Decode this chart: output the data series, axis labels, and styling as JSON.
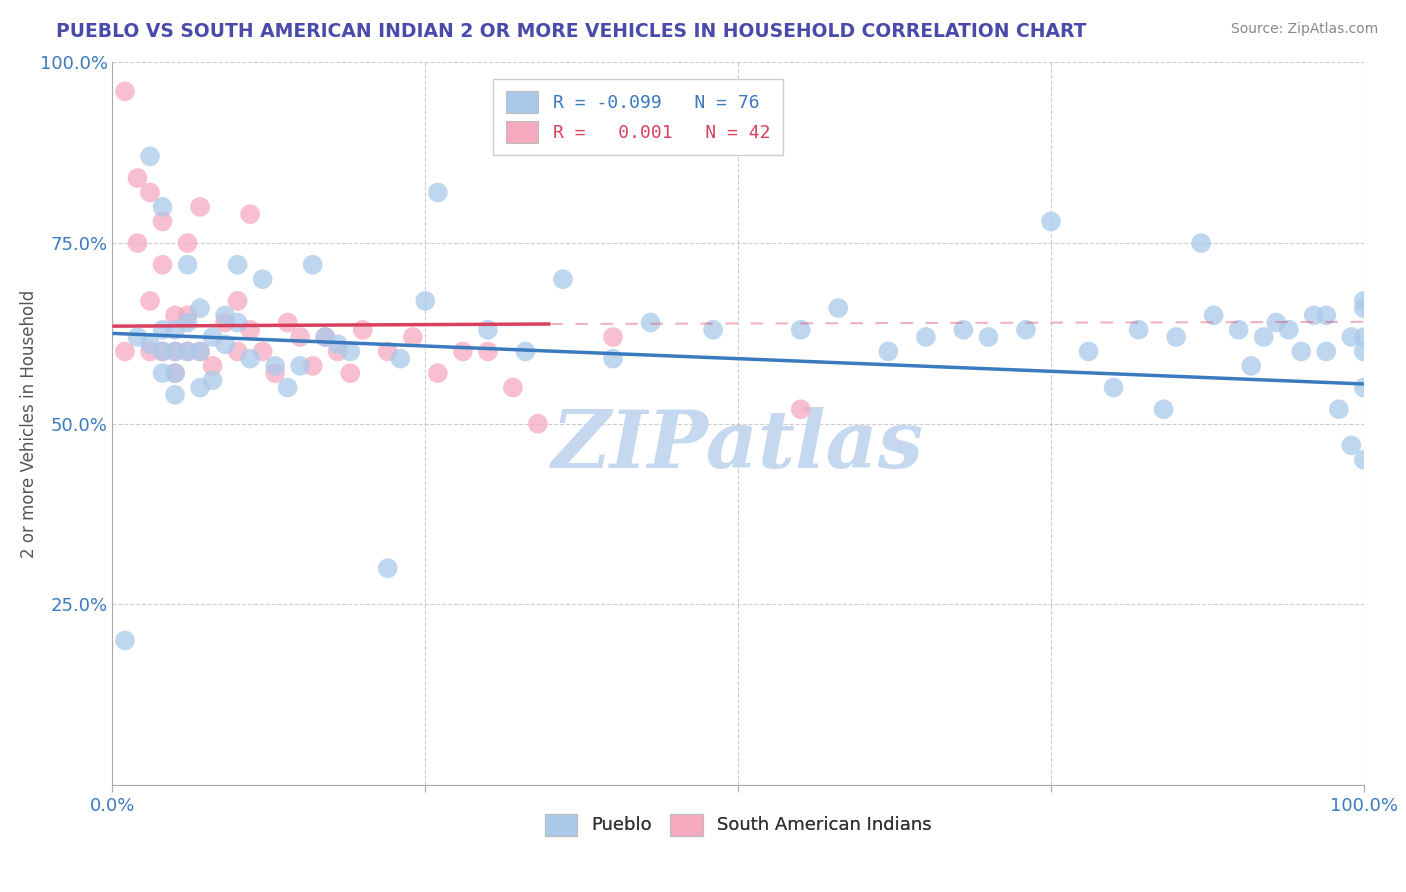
{
  "title": "PUEBLO VS SOUTH AMERICAN INDIAN 2 OR MORE VEHICLES IN HOUSEHOLD CORRELATION CHART",
  "source": "Source: ZipAtlas.com",
  "ylabel": "2 or more Vehicles in Household",
  "xlim": [
    0,
    1
  ],
  "ylim": [
    0,
    1
  ],
  "blue_color": "#aac9ea",
  "pink_color": "#f5aabf",
  "blue_line_color": "#3a7abf",
  "pink_line_color": "#d94060",
  "title_color": "#4a4aaa",
  "watermark": "ZIPatlas",
  "watermark_color": "#c5d8f0",
  "pueblo_x": [
    0.01,
    0.02,
    0.03,
    0.03,
    0.04,
    0.04,
    0.04,
    0.04,
    0.05,
    0.05,
    0.05,
    0.05,
    0.06,
    0.06,
    0.06,
    0.07,
    0.07,
    0.07,
    0.08,
    0.08,
    0.09,
    0.09,
    0.1,
    0.1,
    0.11,
    0.12,
    0.13,
    0.14,
    0.15,
    0.16,
    0.17,
    0.18,
    0.19,
    0.22,
    0.23,
    0.25,
    0.26,
    0.3,
    0.33,
    0.36,
    0.4,
    0.43,
    0.48,
    0.55,
    0.58,
    0.62,
    0.65,
    0.68,
    0.7,
    0.73,
    0.75,
    0.78,
    0.8,
    0.82,
    0.84,
    0.85,
    0.87,
    0.88,
    0.9,
    0.91,
    0.92,
    0.93,
    0.94,
    0.95,
    0.96,
    0.97,
    0.97,
    0.98,
    0.99,
    0.99,
    1.0,
    1.0,
    1.0,
    1.0,
    1.0,
    1.0
  ],
  "pueblo_y": [
    0.2,
    0.62,
    0.61,
    0.87,
    0.57,
    0.6,
    0.63,
    0.8,
    0.54,
    0.57,
    0.6,
    0.63,
    0.72,
    0.6,
    0.64,
    0.55,
    0.6,
    0.66,
    0.56,
    0.62,
    0.61,
    0.65,
    0.72,
    0.64,
    0.59,
    0.7,
    0.58,
    0.55,
    0.58,
    0.72,
    0.62,
    0.61,
    0.6,
    0.3,
    0.59,
    0.67,
    0.82,
    0.63,
    0.6,
    0.7,
    0.59,
    0.64,
    0.63,
    0.63,
    0.66,
    0.6,
    0.62,
    0.63,
    0.62,
    0.63,
    0.78,
    0.6,
    0.55,
    0.63,
    0.52,
    0.62,
    0.75,
    0.65,
    0.63,
    0.58,
    0.62,
    0.64,
    0.63,
    0.6,
    0.65,
    0.6,
    0.65,
    0.52,
    0.47,
    0.62,
    0.55,
    0.6,
    0.62,
    0.66,
    0.67,
    0.45
  ],
  "sa_indian_x": [
    0.01,
    0.01,
    0.02,
    0.02,
    0.03,
    0.03,
    0.03,
    0.04,
    0.04,
    0.04,
    0.05,
    0.05,
    0.05,
    0.06,
    0.06,
    0.06,
    0.07,
    0.07,
    0.08,
    0.09,
    0.1,
    0.1,
    0.11,
    0.11,
    0.12,
    0.13,
    0.14,
    0.15,
    0.16,
    0.17,
    0.18,
    0.19,
    0.2,
    0.22,
    0.24,
    0.26,
    0.28,
    0.3,
    0.32,
    0.34,
    0.4,
    0.55
  ],
  "sa_indian_y": [
    0.6,
    0.96,
    0.75,
    0.84,
    0.6,
    0.67,
    0.82,
    0.6,
    0.72,
    0.78,
    0.6,
    0.65,
    0.57,
    0.6,
    0.65,
    0.75,
    0.6,
    0.8,
    0.58,
    0.64,
    0.67,
    0.6,
    0.63,
    0.79,
    0.6,
    0.57,
    0.64,
    0.62,
    0.58,
    0.62,
    0.6,
    0.57,
    0.63,
    0.6,
    0.62,
    0.57,
    0.6,
    0.6,
    0.55,
    0.5,
    0.62,
    0.52
  ],
  "blue_line_x": [
    0.0,
    1.0
  ],
  "blue_line_y": [
    0.625,
    0.555
  ],
  "pink_line_x": [
    0.0,
    0.35
  ],
  "pink_line_y": [
    0.635,
    0.638
  ]
}
